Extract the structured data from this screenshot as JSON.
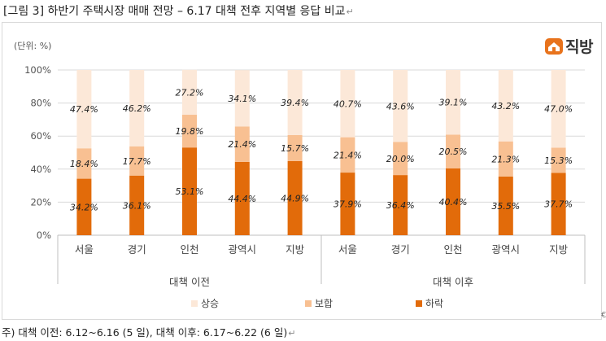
{
  "title": "[그림 3]  하반기 주택시장 매매 전망 – 6.17 대책 전후 지역별 응답 비교",
  "unit_label": "(단위: %)",
  "brand": {
    "name": "직방",
    "color": "#e8731c"
  },
  "note": "주) 대책 이전: 6.12~6.16 (5 일),  대책 이후: 6.17~6.22 (6 일)",
  "colors": {
    "상승": "#fce8d8",
    "보합": "#f8c092",
    "하락": "#e26b0a"
  },
  "chart_data": {
    "type": "bar",
    "stacked": true,
    "categories": [
      "서울",
      "경기",
      "인천",
      "광역시",
      "지방",
      "서울",
      "경기",
      "인천",
      "광역시",
      "지방"
    ],
    "groups": [
      {
        "label": "대책 이전",
        "categories": [
          "서울",
          "경기",
          "인천",
          "광역시",
          "지방"
        ]
      },
      {
        "label": "대책 이후",
        "categories": [
          "서울",
          "경기",
          "인천",
          "광역시",
          "지방"
        ]
      }
    ],
    "series": [
      {
        "name": "하락",
        "values": [
          34.2,
          36.1,
          53.1,
          44.4,
          44.9,
          37.9,
          36.4,
          40.4,
          35.5,
          37.7
        ]
      },
      {
        "name": "보합",
        "values": [
          18.4,
          17.7,
          19.8,
          21.4,
          15.7,
          21.4,
          20.0,
          20.5,
          21.3,
          15.3
        ]
      },
      {
        "name": "상승",
        "values": [
          47.4,
          46.2,
          27.2,
          34.1,
          39.4,
          40.7,
          43.6,
          39.1,
          43.2,
          47.0
        ]
      }
    ],
    "legend_order": [
      "상승",
      "보합",
      "하락"
    ],
    "yticks": [
      "0%",
      "20%",
      "40%",
      "60%",
      "80%",
      "100%"
    ],
    "ylim": [
      0,
      100
    ],
    "grid": true,
    "legend_position": "bottom"
  }
}
